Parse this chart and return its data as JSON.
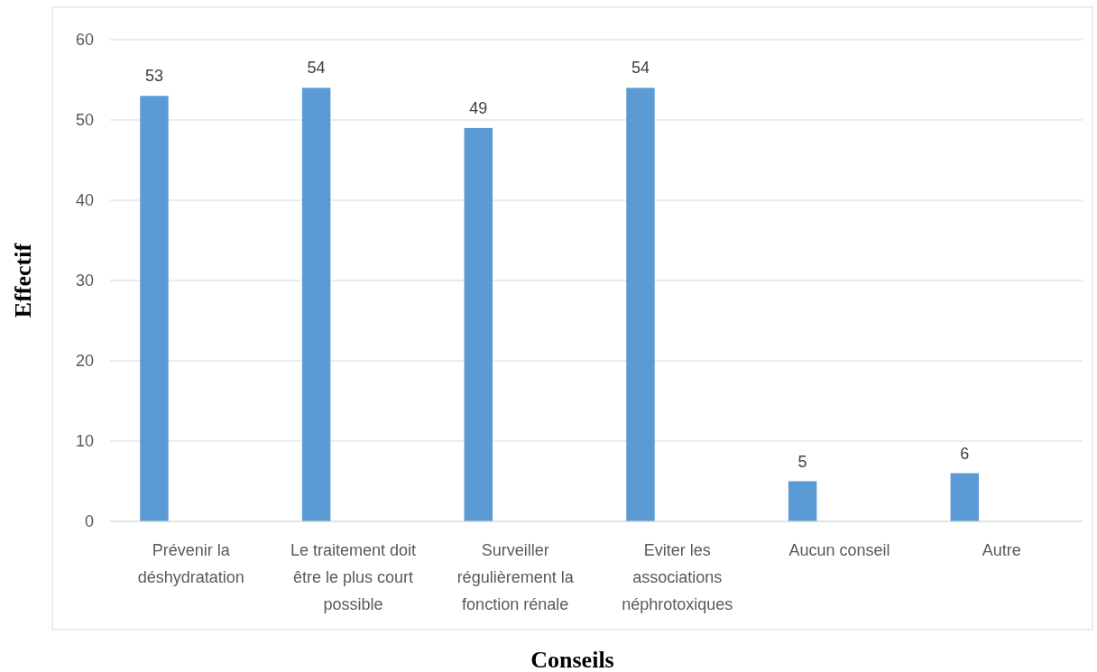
{
  "chart_data": {
    "type": "bar",
    "xlabel": "Conseils",
    "ylabel": "Effectif",
    "categories": [
      "Prévenir la déshydratation",
      "Le traitement doit être le plus court possible",
      "Surveiller régulièrement la fonction rénale",
      "Eviter les associations néphrotoxiques",
      "Aucun conseil",
      "Autre"
    ],
    "values": [
      53,
      54,
      49,
      54,
      5,
      6
    ],
    "color": "#5b9bd5",
    "ylim": [
      0,
      60
    ],
    "yticks": [
      0,
      10,
      20,
      30,
      40,
      50,
      60
    ],
    "grid": "y",
    "data_labels": true
  }
}
